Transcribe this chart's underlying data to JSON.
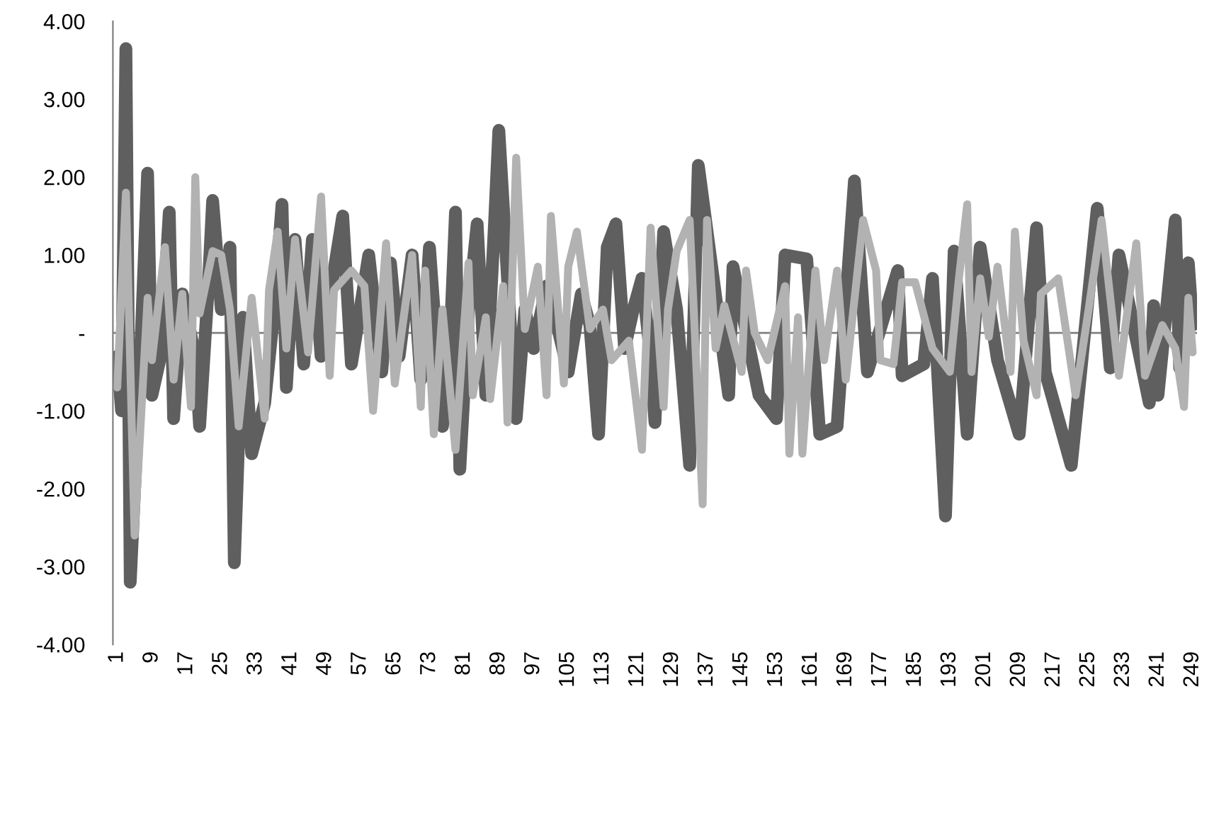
{
  "chart_data": {
    "type": "line",
    "series": [
      {
        "color": "#5f5f5f",
        "x": [
          1,
          2,
          3,
          4,
          6,
          8,
          9,
          11,
          13,
          14,
          16,
          19,
          20,
          22,
          23,
          25,
          27,
          28,
          30,
          32,
          35,
          37,
          39,
          40,
          42,
          44,
          46,
          48,
          51,
          53,
          55,
          57,
          59,
          62,
          64,
          66,
          69,
          71,
          73,
          76,
          78,
          79,
          80,
          82,
          84,
          86,
          88,
          89,
          91,
          93,
          95,
          97,
          100,
          102,
          105,
          108,
          110,
          112,
          114,
          116,
          118,
          120,
          122,
          124,
          125,
          127,
          130,
          133,
          135,
          142,
          143,
          149,
          153,
          155,
          160,
          163,
          167,
          171,
          174,
          181,
          182,
          187,
          189,
          192,
          194,
          197,
          200,
          204,
          209,
          213,
          215,
          221,
          227,
          230,
          232,
          239,
          240,
          241,
          245,
          246,
          248,
          249
        ],
        "values": [
          -0.3,
          -1.0,
          3.65,
          -3.2,
          -0.8,
          2.05,
          -0.8,
          -0.3,
          1.55,
          -1.1,
          0.5,
          -0.3,
          -1.2,
          0.6,
          1.7,
          0.3,
          1.1,
          -2.95,
          0.2,
          -1.55,
          -0.9,
          0.2,
          1.65,
          -0.7,
          1.2,
          -0.4,
          1.2,
          -0.3,
          0.8,
          1.5,
          -0.4,
          0.3,
          1.0,
          -0.5,
          0.9,
          -0.3,
          1.0,
          -0.6,
          1.1,
          -1.2,
          0.2,
          1.55,
          -1.75,
          0.3,
          1.4,
          -0.8,
          1.4,
          2.6,
          0.7,
          -1.1,
          0.3,
          -0.2,
          0.6,
          0.2,
          -0.5,
          0.5,
          0.1,
          -1.3,
          1.1,
          1.4,
          -0.2,
          0.3,
          0.7,
          -0.3,
          -1.15,
          1.3,
          0.3,
          -1.7,
          2.15,
          -0.8,
          0.85,
          -0.8,
          -1.1,
          1.0,
          0.95,
          -1.3,
          -1.2,
          1.95,
          -0.5,
          0.8,
          -0.55,
          -0.4,
          0.7,
          -2.35,
          1.05,
          -1.3,
          1.1,
          -0.35,
          -1.3,
          1.35,
          -0.5,
          -1.7,
          1.6,
          -0.45,
          1.0,
          -0.9,
          0.35,
          -0.8,
          1.45,
          -0.45,
          0.9,
          0.1
        ]
      },
      {
        "color": "#b2b2b2",
        "x": [
          1,
          3,
          5,
          8,
          9,
          12,
          14,
          16,
          18,
          19,
          20,
          23,
          25,
          27,
          29,
          32,
          35,
          36,
          38,
          40,
          42,
          45,
          48,
          50,
          51,
          55,
          58,
          60,
          63,
          65,
          69,
          71,
          72,
          74,
          76,
          79,
          82,
          83,
          86,
          87,
          90,
          91,
          93,
          95,
          98,
          100,
          101,
          104,
          105,
          107,
          110,
          113,
          115,
          119,
          122,
          124,
          127,
          128,
          130,
          133,
          136,
          137,
          139,
          141,
          145,
          146,
          148,
          151,
          155,
          156,
          158,
          159,
          162,
          164,
          167,
          169,
          173,
          176,
          177,
          180,
          182,
          185,
          189,
          193,
          195,
          197,
          198,
          200,
          202,
          204,
          207,
          208,
          210,
          213,
          214,
          218,
          222,
          225,
          228,
          232,
          236,
          238,
          242,
          245,
          247,
          248,
          249
        ],
        "values": [
          -0.7,
          1.8,
          -2.6,
          0.45,
          -0.35,
          1.1,
          -0.6,
          0.5,
          -0.95,
          2.0,
          0.25,
          1.05,
          1.0,
          0.3,
          -1.2,
          0.45,
          -1.1,
          0.55,
          1.3,
          -0.2,
          1.2,
          -0.25,
          1.75,
          -0.55,
          0.55,
          0.8,
          0.6,
          -1.0,
          1.15,
          -0.65,
          1.0,
          -0.95,
          0.8,
          -1.3,
          0.3,
          -1.5,
          0.9,
          -0.8,
          0.2,
          -0.85,
          0.6,
          -1.15,
          2.25,
          0.05,
          0.85,
          -0.8,
          1.5,
          -0.65,
          0.85,
          1.3,
          0.05,
          0.3,
          -0.35,
          -0.1,
          -1.5,
          1.35,
          -0.95,
          0.3,
          1.05,
          1.45,
          -2.2,
          1.45,
          -0.2,
          0.35,
          -0.5,
          0.8,
          0,
          -0.35,
          0.6,
          -1.55,
          0.2,
          -1.55,
          0.8,
          -0.35,
          0.8,
          -0.6,
          1.45,
          0.8,
          -0.35,
          -0.4,
          0.65,
          0.65,
          -0.2,
          -0.5,
          0.65,
          1.65,
          -0.5,
          0.7,
          -0.05,
          0.85,
          -0.5,
          1.3,
          -0.1,
          -0.8,
          0.5,
          0.7,
          -0.8,
          0.3,
          1.45,
          -0.55,
          1.15,
          -0.55,
          0.1,
          -0.2,
          -0.95,
          0.45,
          -0.25
        ]
      }
    ],
    "xlim": [
      0,
      250
    ],
    "xticks": [
      1,
      9,
      17,
      25,
      33,
      41,
      49,
      57,
      65,
      73,
      81,
      89,
      97,
      105,
      113,
      121,
      129,
      137,
      145,
      153,
      161,
      169,
      177,
      185,
      193,
      201,
      209,
      217,
      225,
      233,
      241,
      249
    ],
    "ylim": [
      -4,
      4
    ],
    "yticks": [
      {
        "value": -4,
        "label": "-4.00"
      },
      {
        "value": -3,
        "label": "-3.00"
      },
      {
        "value": -2,
        "label": "-2.00"
      },
      {
        "value": -1,
        "label": "-1.00"
      },
      {
        "value": 0,
        "label": "-"
      },
      {
        "value": 1,
        "label": "1.00"
      },
      {
        "value": 2,
        "label": "2.00"
      },
      {
        "value": 3,
        "label": "3.00"
      },
      {
        "value": 4,
        "label": "4.00"
      }
    ],
    "ref_lines": [
      {
        "axis": "y",
        "value": 0,
        "color": "#808080"
      }
    ],
    "grid": false,
    "line_style": "solid",
    "marker": "none"
  }
}
